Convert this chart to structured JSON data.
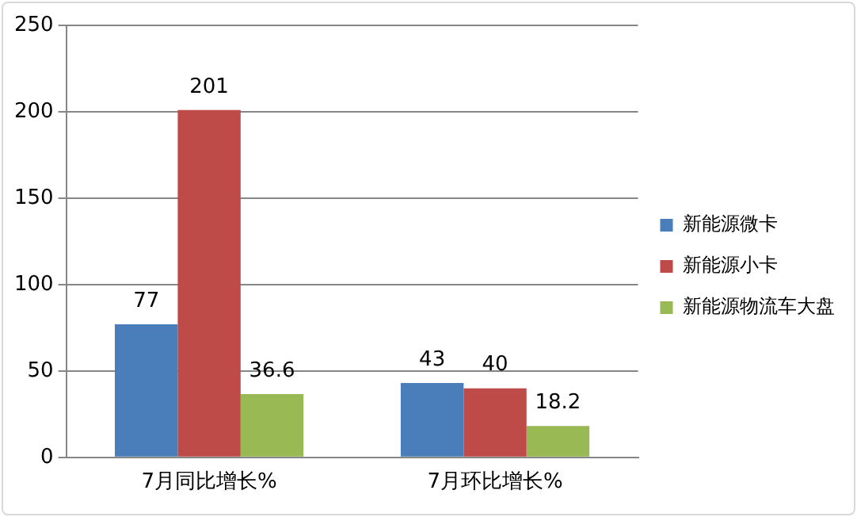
{
  "chart_data": {
    "type": "bar",
    "categories": [
      "7月同比增长%",
      "7月环比增长%"
    ],
    "series": [
      {
        "name": "新能源微卡",
        "color": "#4a7ebb",
        "values": [
          77,
          43
        ]
      },
      {
        "name": "新能源小卡",
        "color": "#be4b48",
        "values": [
          201,
          40
        ]
      },
      {
        "name": "新能源物流车大盘",
        "color": "#98b954",
        "values": [
          36.6,
          18.2
        ]
      }
    ],
    "ylim": [
      0,
      250
    ],
    "yticks": [
      0,
      50,
      100,
      150,
      200,
      250
    ],
    "grid": "y",
    "legend": "right",
    "data_labels": true
  }
}
